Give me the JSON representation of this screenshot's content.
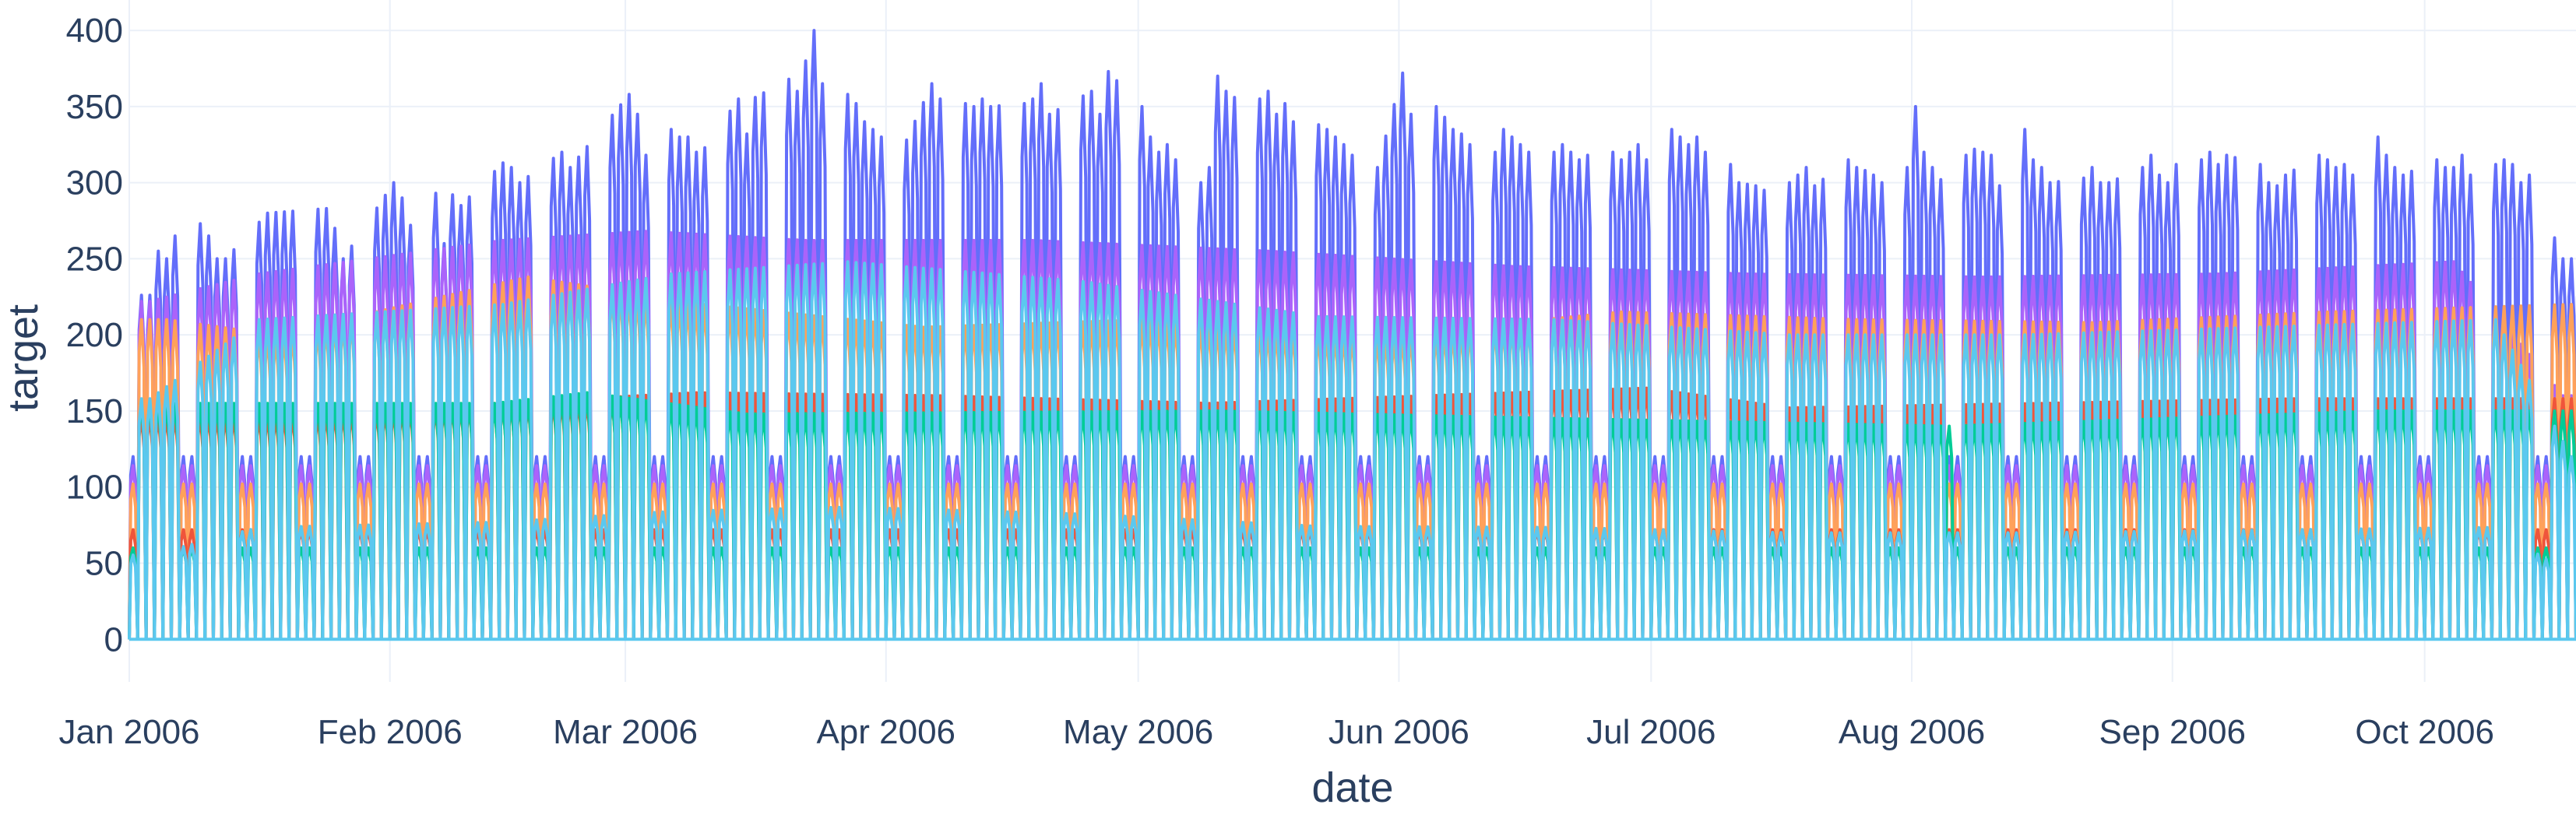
{
  "chart_data": {
    "type": "line",
    "title": "",
    "xlabel": "date",
    "ylabel": "target",
    "x_range": [
      "2006-01-01",
      "2006-10-19"
    ],
    "ylim": [
      -28,
      420
    ],
    "x_ticks": [
      {
        "date": "2006-01-01",
        "label": "Jan 2006"
      },
      {
        "date": "2006-02-01",
        "label": "Feb 2006"
      },
      {
        "date": "2006-03-01",
        "label": "Mar 2006"
      },
      {
        "date": "2006-04-01",
        "label": "Apr 2006"
      },
      {
        "date": "2006-05-01",
        "label": "May 2006"
      },
      {
        "date": "2006-06-01",
        "label": "Jun 2006"
      },
      {
        "date": "2006-07-01",
        "label": "Jul 2006"
      },
      {
        "date": "2006-08-01",
        "label": "Aug 2006"
      },
      {
        "date": "2006-09-01",
        "label": "Sep 2006"
      },
      {
        "date": "2006-10-01",
        "label": "Oct 2006"
      }
    ],
    "y_ticks": [
      0,
      50,
      100,
      150,
      200,
      250,
      300,
      350,
      400
    ],
    "grid": true,
    "legend": "none",
    "background": "#ffffff",
    "grid_color": "#ebf0f8",
    "series": [
      {
        "color": "#636efa",
        "base": 200,
        "values": [
          [
            "2006-01-03",
            226
          ],
          [
            "2006-01-04",
            255
          ],
          [
            "2006-01-05",
            250
          ],
          [
            "2006-01-06",
            265
          ],
          [
            "2006-01-09",
            273
          ],
          [
            "2006-01-10",
            265
          ],
          [
            "2006-01-11",
            250
          ],
          [
            "2006-01-12",
            250
          ],
          [
            "2006-01-17",
            280
          ],
          [
            "2006-01-24",
            283
          ],
          [
            "2006-01-25",
            270
          ],
          [
            "2006-01-26",
            250
          ],
          [
            "2006-02-01",
            300
          ],
          [
            "2006-02-02",
            290
          ],
          [
            "2006-02-03",
            272
          ],
          [
            "2006-02-06",
            293
          ],
          [
            "2006-02-07",
            260
          ],
          [
            "2006-02-08",
            292
          ],
          [
            "2006-02-09",
            285
          ],
          [
            "2006-02-14",
            313
          ],
          [
            "2006-02-15",
            310
          ],
          [
            "2006-02-16",
            300
          ],
          [
            "2006-02-21",
            320
          ],
          [
            "2006-02-22",
            310
          ],
          [
            "2006-03-01",
            358
          ],
          [
            "2006-03-02",
            345
          ],
          [
            "2006-03-03",
            318
          ],
          [
            "2006-03-06",
            335
          ],
          [
            "2006-03-07",
            330
          ],
          [
            "2006-03-08",
            330
          ],
          [
            "2006-03-09",
            320
          ],
          [
            "2006-03-10",
            323
          ],
          [
            "2006-03-14",
            355
          ],
          [
            "2006-03-15",
            332
          ],
          [
            "2006-03-16",
            356
          ],
          [
            "2006-03-20",
            368
          ],
          [
            "2006-03-21",
            360
          ],
          [
            "2006-03-22",
            380
          ],
          [
            "2006-03-23",
            400
          ],
          [
            "2006-03-24",
            365
          ],
          [
            "2006-03-27",
            358
          ],
          [
            "2006-03-28",
            352
          ],
          [
            "2006-03-29",
            340
          ],
          [
            "2006-03-31",
            330
          ],
          [
            "2006-04-03",
            328
          ],
          [
            "2006-04-06",
            365
          ],
          [
            "2006-04-07",
            355
          ],
          [
            "2006-04-10",
            352
          ],
          [
            "2006-04-11",
            350
          ],
          [
            "2006-04-12",
            355
          ],
          [
            "2006-04-13",
            350
          ],
          [
            "2006-04-17",
            352
          ],
          [
            "2006-04-18",
            355
          ],
          [
            "2006-04-19",
            365
          ],
          [
            "2006-04-20",
            345
          ],
          [
            "2006-04-24",
            357
          ],
          [
            "2006-04-25",
            360
          ],
          [
            "2006-04-26",
            345
          ],
          [
            "2006-04-27",
            373
          ],
          [
            "2006-04-28",
            367
          ],
          [
            "2006-05-01",
            350
          ],
          [
            "2006-05-02",
            330
          ],
          [
            "2006-05-03",
            320
          ],
          [
            "2006-05-04",
            325
          ],
          [
            "2006-05-05",
            315
          ],
          [
            "2006-05-08",
            300
          ],
          [
            "2006-05-09",
            310
          ],
          [
            "2006-05-10",
            370
          ],
          [
            "2006-05-11",
            360
          ],
          [
            "2006-05-12",
            356
          ],
          [
            "2006-05-15",
            355
          ],
          [
            "2006-05-16",
            360
          ],
          [
            "2006-05-17",
            345
          ],
          [
            "2006-05-18",
            352
          ],
          [
            "2006-05-19",
            340
          ],
          [
            "2006-05-22",
            338
          ],
          [
            "2006-05-23",
            335
          ],
          [
            "2006-05-24",
            330
          ],
          [
            "2006-05-25",
            325
          ],
          [
            "2006-05-26",
            318
          ],
          [
            "2006-05-29",
            310
          ],
          [
            "2006-06-01",
            372
          ],
          [
            "2006-06-02",
            345
          ],
          [
            "2006-06-05",
            350
          ],
          [
            "2006-06-06",
            343
          ],
          [
            "2006-06-07",
            335
          ],
          [
            "2006-06-08",
            332
          ],
          [
            "2006-06-09",
            325
          ],
          [
            "2006-06-12",
            320
          ],
          [
            "2006-06-13",
            335
          ],
          [
            "2006-06-14",
            330
          ],
          [
            "2006-06-15",
            325
          ],
          [
            "2006-06-16",
            320
          ],
          [
            "2006-06-19",
            320
          ],
          [
            "2006-06-20",
            325
          ],
          [
            "2006-06-21",
            320
          ],
          [
            "2006-06-22",
            315
          ],
          [
            "2006-06-23",
            318
          ],
          [
            "2006-06-26",
            320
          ],
          [
            "2006-06-27",
            315
          ],
          [
            "2006-06-28",
            320
          ],
          [
            "2006-06-29",
            325
          ],
          [
            "2006-06-30",
            315
          ],
          [
            "2006-07-03",
            335
          ],
          [
            "2006-07-04",
            330
          ],
          [
            "2006-07-05",
            325
          ],
          [
            "2006-07-06",
            330
          ],
          [
            "2006-07-07",
            320
          ],
          [
            "2006-07-10",
            312
          ],
          [
            "2006-07-11",
            300
          ],
          [
            "2006-07-13",
            298
          ],
          [
            "2006-07-14",
            295
          ],
          [
            "2006-07-17",
            300
          ],
          [
            "2006-07-18",
            305
          ],
          [
            "2006-07-19",
            310
          ],
          [
            "2006-07-20",
            298
          ],
          [
            "2006-07-24",
            315
          ],
          [
            "2006-07-25",
            310
          ],
          [
            "2006-07-26",
            308
          ],
          [
            "2006-07-27",
            305
          ],
          [
            "2006-07-28",
            300
          ],
          [
            "2006-07-31",
            310
          ],
          [
            "2006-08-01",
            350
          ],
          [
            "2006-08-02",
            320
          ],
          [
            "2006-08-03",
            310
          ],
          [
            "2006-08-04",
            302
          ],
          [
            "2006-08-07",
            318
          ],
          [
            "2006-08-08",
            322
          ],
          [
            "2006-08-09",
            320
          ],
          [
            "2006-08-10",
            318
          ],
          [
            "2006-08-11",
            298
          ],
          [
            "2006-08-14",
            335
          ],
          [
            "2006-08-15",
            315
          ],
          [
            "2006-08-16",
            310
          ],
          [
            "2006-08-17",
            300
          ],
          [
            "2006-08-21",
            303
          ],
          [
            "2006-08-22",
            310
          ],
          [
            "2006-08-23",
            300
          ],
          [
            "2006-08-24",
            300
          ],
          [
            "2006-08-28",
            310
          ],
          [
            "2006-08-29",
            318
          ],
          [
            "2006-08-30",
            305
          ],
          [
            "2006-08-31",
            300
          ],
          [
            "2006-09-01",
            312
          ],
          [
            "2006-09-04",
            315
          ],
          [
            "2006-09-05",
            320
          ],
          [
            "2006-09-06",
            312
          ],
          [
            "2006-09-07",
            318
          ],
          [
            "2006-09-11",
            312
          ],
          [
            "2006-09-12",
            300
          ],
          [
            "2006-09-13",
            298
          ],
          [
            "2006-09-14",
            305
          ],
          [
            "2006-09-18",
            318
          ],
          [
            "2006-09-19",
            315
          ],
          [
            "2006-09-20",
            310
          ],
          [
            "2006-09-21",
            312
          ],
          [
            "2006-09-22",
            305
          ],
          [
            "2006-09-25",
            330
          ],
          [
            "2006-09-26",
            318
          ],
          [
            "2006-09-27",
            310
          ],
          [
            "2006-09-28",
            305
          ],
          [
            "2006-10-02",
            315
          ],
          [
            "2006-10-03",
            310
          ],
          [
            "2006-10-04",
            310
          ],
          [
            "2006-10-05",
            318
          ],
          [
            "2006-10-06",
            305
          ],
          [
            "2006-10-09",
            312
          ],
          [
            "2006-10-10",
            315
          ],
          [
            "2006-10-11",
            312
          ],
          [
            "2006-10-12",
            300
          ],
          [
            "2006-10-13",
            305
          ],
          [
            "2006-10-17",
            250
          ]
        ]
      },
      {
        "color": "#ab63fa",
        "base": 190,
        "values": [
          [
            "2006-01-03",
            222
          ],
          [
            "2006-01-16",
            240
          ],
          [
            "2006-02-14",
            262
          ],
          [
            "2006-03-03",
            268
          ],
          [
            "2006-03-22",
            262
          ],
          [
            "2006-04-18",
            262
          ],
          [
            "2006-05-16",
            255
          ],
          [
            "2006-06-14",
            245
          ],
          [
            "2006-07-12",
            240
          ],
          [
            "2006-08-09",
            238
          ],
          [
            "2006-09-06",
            240
          ],
          [
            "2006-10-04",
            248
          ],
          [
            "2006-10-17",
            160
          ]
        ]
      },
      {
        "color": "#ffa15a",
        "base": 170,
        "values": [
          [
            "2006-01-05",
            210
          ],
          [
            "2006-01-18",
            200
          ],
          [
            "2006-02-17",
            238
          ],
          [
            "2006-03-10",
            220
          ],
          [
            "2006-04-05",
            205
          ],
          [
            "2006-05-02",
            210
          ],
          [
            "2006-05-30",
            200
          ],
          [
            "2006-06-27",
            215
          ],
          [
            "2006-07-25",
            210
          ],
          [
            "2006-08-22",
            208
          ],
          [
            "2006-09-19",
            215
          ],
          [
            "2006-10-18",
            220
          ]
        ]
      },
      {
        "color": "#ef553b",
        "base": 120,
        "values": [
          [
            "2006-01-20",
            148
          ],
          [
            "2006-03-09",
            162
          ],
          [
            "2006-04-07",
            160
          ],
          [
            "2006-05-09",
            155
          ],
          [
            "2006-06-30",
            165
          ],
          [
            "2006-07-17",
            152
          ],
          [
            "2006-08-16",
            155
          ],
          [
            "2006-09-15",
            158
          ]
        ]
      },
      {
        "color": "#00cc96",
        "base": 100,
        "values": [
          [
            "2006-02-13",
            155
          ],
          [
            "2006-02-24",
            162
          ],
          [
            "2006-03-15",
            148
          ],
          [
            "2006-05-10",
            150
          ],
          [
            "2006-06-20",
            145
          ],
          [
            "2006-08-05",
            140
          ],
          [
            "2006-09-25",
            150
          ],
          [
            "2006-10-19",
            150
          ]
        ]
      },
      {
        "color": "#5bc8ef",
        "base": 0,
        "values": [
          [
            "2006-01-03",
            158
          ],
          [
            "2006-01-16",
            210
          ],
          [
            "2006-02-14",
            220
          ],
          [
            "2006-03-06",
            240
          ],
          [
            "2006-03-27",
            248
          ],
          [
            "2006-04-24",
            235
          ],
          [
            "2006-05-22",
            212
          ],
          [
            "2006-06-19",
            210
          ],
          [
            "2006-07-17",
            200
          ],
          [
            "2006-08-14",
            200
          ],
          [
            "2006-09-11",
            205
          ],
          [
            "2006-10-09",
            210
          ],
          [
            "2006-10-18",
            120
          ]
        ]
      }
    ]
  }
}
